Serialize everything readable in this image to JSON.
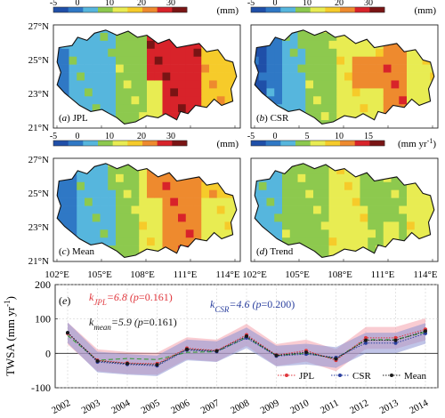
{
  "colors": {
    "palette": [
      "#1f4fa8",
      "#2f78c5",
      "#56b6dd",
      "#8dc94e",
      "#e8ec52",
      "#f6cb2a",
      "#ee8a2e",
      "#d8232a",
      "#7a1414"
    ],
    "jpl": "#e0363c",
    "csr": "#2a3f9e",
    "mean": "#1a1a1a",
    "jpl_band": "#f4a3ad",
    "csr_band": "#8c93d4",
    "trend": "#3c9d3c"
  },
  "maps": {
    "lat_ticks": [
      "27°N",
      "25°N",
      "23°N",
      "21°N"
    ],
    "lon_ticks": [
      "102°E",
      "105°E",
      "108°E",
      "111°E",
      "114°E"
    ],
    "panels": [
      {
        "id": "a",
        "label": "(a) JPL",
        "letter": "a",
        "name": "JPL",
        "cb_ticks": [
          "-5",
          "0",
          "10",
          "20",
          "30"
        ],
        "cb_unit": "(mm)",
        "field": [
          [
            -1.2,
            0.1,
            0.25,
            -0.1,
            -0.3,
            0.0,
            -0.1
          ],
          [
            0,
            0.4,
            0.3,
            0.55,
            0.75,
            0.2,
            0.1
          ]
        ]
      },
      {
        "id": "b",
        "label": "(b) CSR",
        "letter": "b",
        "name": "CSR",
        "cb_ticks": [
          "-5",
          "0",
          "10",
          "20",
          "30"
        ],
        "cb_unit": "(mm)",
        "field": [
          [
            -0.4,
            0.35,
            0.1,
            0,
            0.2,
            0.0,
            0.1
          ],
          [
            0,
            0.2,
            0.3,
            0.1,
            -0.2,
            0.15,
            0.05
          ]
        ]
      },
      {
        "id": "c",
        "label": "(c) Mean",
        "letter": "c",
        "name": "Mean",
        "cb_ticks": [
          "-5",
          "0",
          "10",
          "20",
          "30"
        ],
        "cb_unit": "(mm)",
        "field": [
          [
            -0.9,
            0.2,
            0.2,
            0.1,
            0.0,
            -0.05,
            0.1
          ],
          [
            0,
            0.3,
            0.3,
            0.3,
            0.2,
            0.1,
            0.1
          ]
        ]
      },
      {
        "id": "d",
        "label": "(d) Trend",
        "letter": "d",
        "name": "Trend",
        "cb_ticks": [
          "-5",
          "0",
          "5",
          "10",
          "15"
        ],
        "cb_unit": "(mm yr",
        "cb_unit_sup": "-1",
        "cb_unit_close": ")",
        "field": [
          [
            -0.3,
            0.0,
            0.6,
            -0.3,
            0.3,
            0.1,
            0.0
          ],
          [
            0,
            0.3,
            0.5,
            0.2,
            -0.4,
            0.1,
            0.05
          ]
        ]
      }
    ]
  },
  "chart_data": {
    "type": "line",
    "panel_label": "(e)",
    "ylabel": "TWSA (mm yr",
    "ylabel_sup": "-1",
    "ylabel_close": ")",
    "x": [
      "2002",
      "2003",
      "2004",
      "2005",
      "2006",
      "2007",
      "2008",
      "2009",
      "2010",
      "2011",
      "2012",
      "2013",
      "2014"
    ],
    "ylim": [
      -100,
      200
    ],
    "yticks": [
      -100,
      0,
      100,
      200
    ],
    "series": [
      {
        "name": "JPL",
        "values": [
          58,
          -20,
          -28,
          -30,
          15,
          8,
          54,
          -5,
          8,
          -20,
          45,
          45,
          70
        ]
      },
      {
        "name": "CSR",
        "values": [
          60,
          -25,
          -32,
          -36,
          10,
          5,
          45,
          -8,
          -2,
          -12,
          30,
          30,
          58
        ]
      },
      {
        "name": "Mean",
        "values": [
          60,
          -22,
          -30,
          -33,
          12,
          7,
          50,
          -6,
          3,
          -16,
          38,
          38,
          65
        ]
      }
    ],
    "trend_line": {
      "values": [
        52,
        -20,
        -15,
        -18,
        3,
        5,
        46,
        -6,
        0,
        -15,
        40,
        40,
        62
      ]
    },
    "annotations": {
      "jpl": {
        "k": "k",
        "sub": "JPL",
        "text": "=6.8 (",
        "p": "p",
        "ptext": "=0.161)"
      },
      "csr": {
        "k": "k",
        "sub": "CSR",
        "text": "=4.6 (",
        "p": "p",
        "ptext": "=0.200)"
      },
      "mean": {
        "k": "k",
        "sub": "mean",
        "text": "=5.9 (",
        "p": "p",
        "ptext": "=0.161)"
      }
    },
    "legend": [
      "JPL",
      "CSR",
      "Mean"
    ],
    "legend_position": "bottom-right"
  }
}
